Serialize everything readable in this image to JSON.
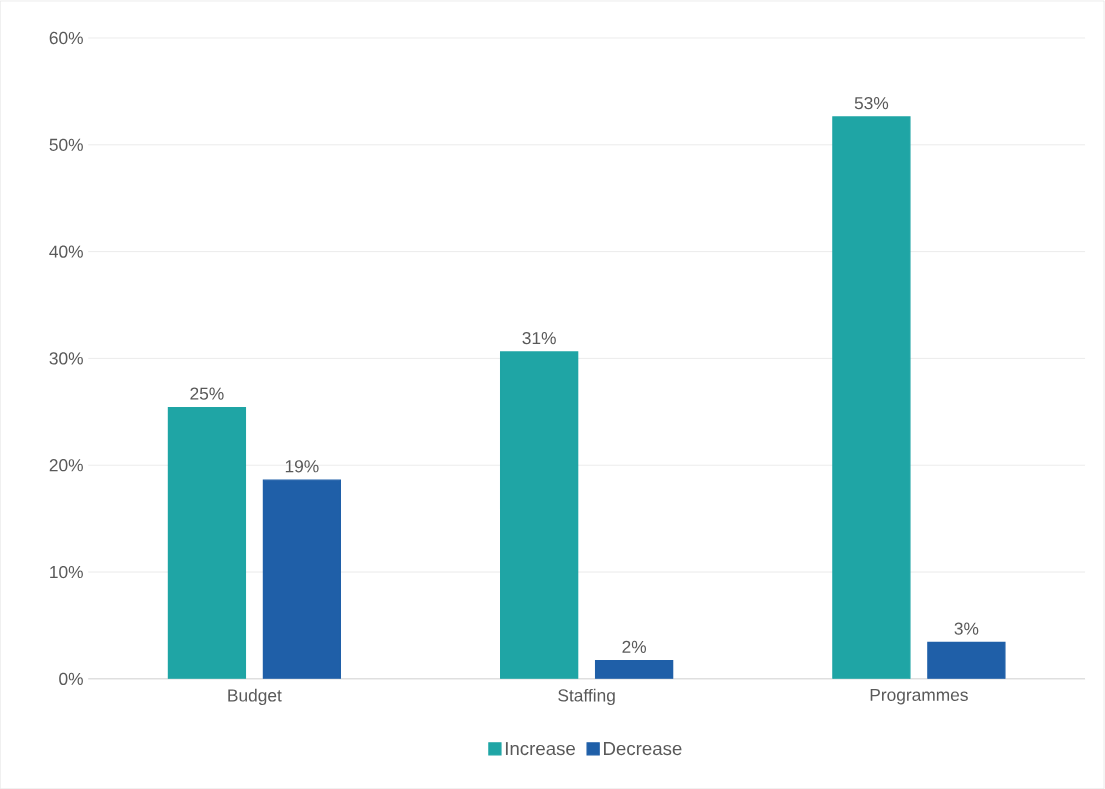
{
  "chart_data": {
    "type": "bar",
    "categories": [
      "Budget",
      "Staffing",
      "Programmes"
    ],
    "series": [
      {
        "name": "Increase",
        "color": "#1fa5a5",
        "values": [
          25.4,
          30.6,
          52.6
        ],
        "value_labels": [
          "25%",
          "31%",
          "53%"
        ]
      },
      {
        "name": "Decrease",
        "color": "#1f5fa8",
        "values": [
          18.6,
          1.7,
          3.4
        ],
        "value_labels": [
          "19%",
          "2%",
          "3%"
        ]
      }
    ],
    "ylim": [
      0,
      60
    ],
    "yticks": [
      {
        "value": 0,
        "label": "0%"
      },
      {
        "value": 10,
        "label": "10%"
      },
      {
        "value": 20,
        "label": "20%"
      },
      {
        "value": 30,
        "label": "30%"
      },
      {
        "value": 40,
        "label": "40%"
      },
      {
        "value": 50,
        "label": "50%"
      },
      {
        "value": 60,
        "label": "60%"
      }
    ],
    "grid": "y",
    "legend": "bottom"
  }
}
